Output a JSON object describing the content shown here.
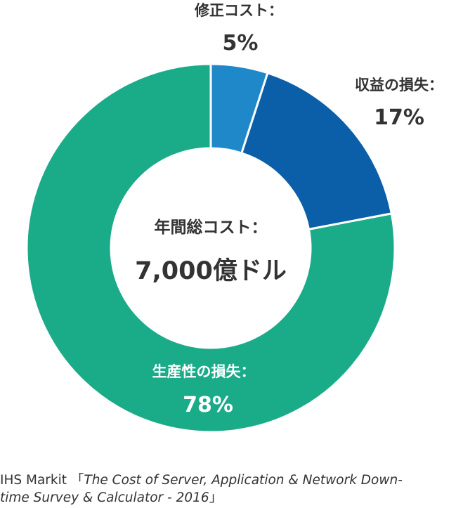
{
  "chart_data": {
    "type": "pie",
    "donut": true,
    "slices": [
      {
        "label": "修正コスト：",
        "value": 5,
        "value_text": "5%",
        "color": "#1e88c9"
      },
      {
        "label": "収益の損失：",
        "value": 17,
        "value_text": "17%",
        "color": "#0b5ea8"
      },
      {
        "label": "生産性の損失：",
        "value": 78,
        "value_text": "78%",
        "color": "#1aab89"
      }
    ],
    "center_label": "年間総コスト：",
    "center_value": "7,000億ドル"
  },
  "source": {
    "prefix": "IHS Markit 「",
    "title_line1": "The Cost of Server, Application & Network Down-",
    "title_line2": "time Survey & Calculator - 2016",
    "suffix": "」"
  }
}
